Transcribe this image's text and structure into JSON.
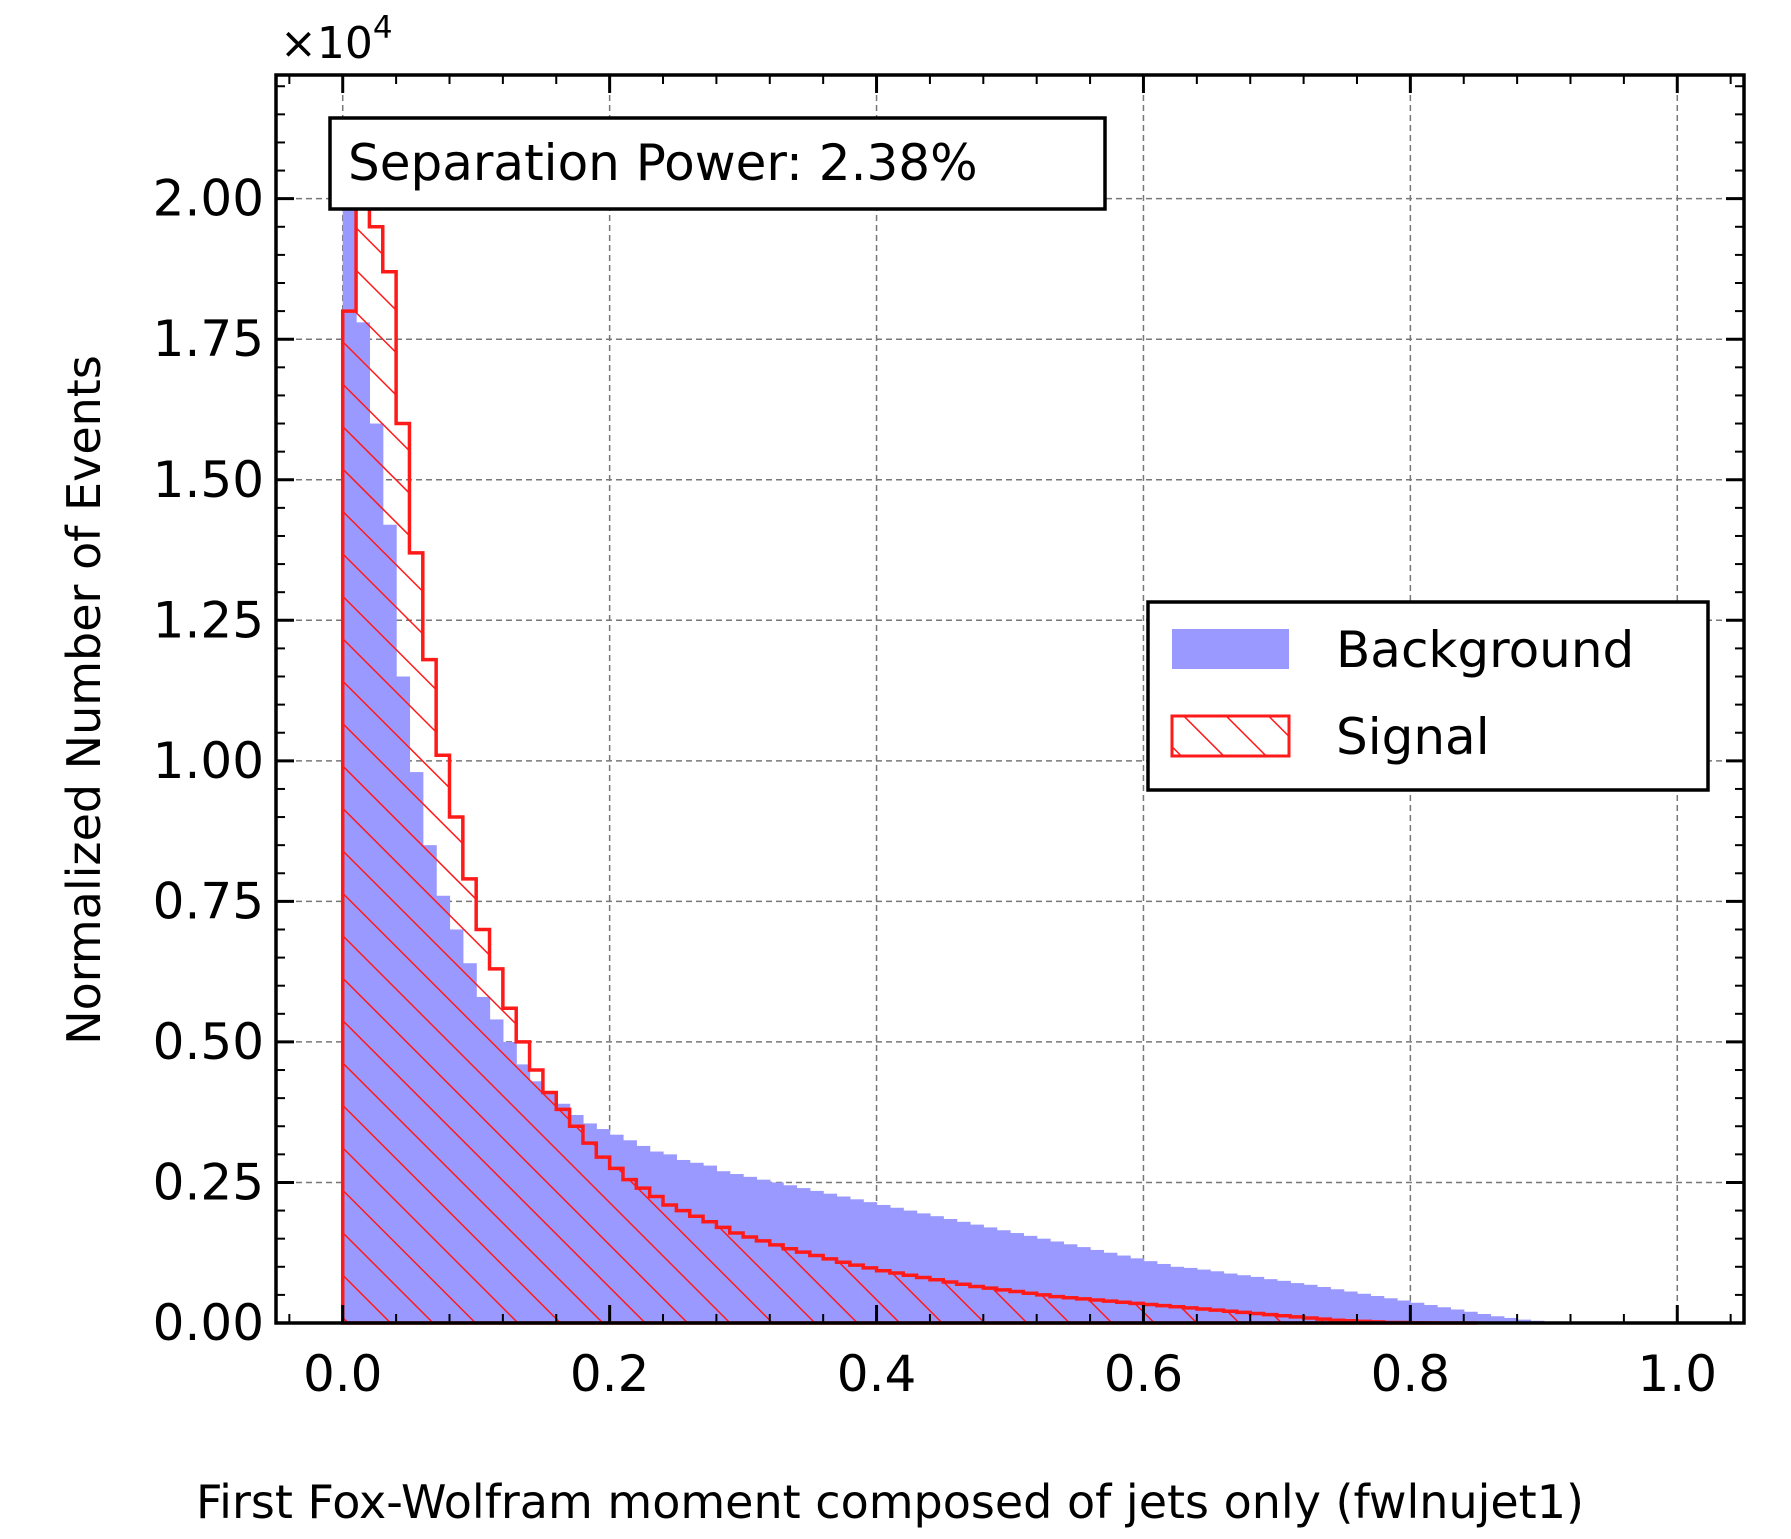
{
  "chart_data": {
    "type": "histogram",
    "xlabel": "First Fox-Wolfram moment composed of jets only (fwlnujet1)",
    "ylabel": "Normalized Number of Events",
    "y_multiplier": "×10",
    "y_multiplier_exp": "4",
    "annotation": "Separation Power: 2.38%",
    "xlim": [
      -0.05,
      1.05
    ],
    "ylim": [
      0,
      2.22
    ],
    "x_ticks": [
      0.0,
      0.2,
      0.4,
      0.6,
      0.8,
      1.0
    ],
    "x_tick_labels": [
      "0.0",
      "0.2",
      "0.4",
      "0.6",
      "0.8",
      "1.0"
    ],
    "y_ticks": [
      0.0,
      0.25,
      0.5,
      0.75,
      1.0,
      1.25,
      1.5,
      1.75,
      2.0
    ],
    "y_tick_labels": [
      "0.00",
      "0.25",
      "0.50",
      "0.75",
      "1.00",
      "1.25",
      "1.50",
      "1.75",
      "2.00"
    ],
    "grid": true,
    "legend_position": "center-right",
    "bin_start": 0.0,
    "bin_width": 0.01,
    "series": [
      {
        "name": "Background",
        "style": "filled",
        "color": "#9999ff",
        "values": [
          2.0,
          1.78,
          1.6,
          1.42,
          1.15,
          0.98,
          0.85,
          0.76,
          0.7,
          0.64,
          0.58,
          0.54,
          0.5,
          0.46,
          0.43,
          0.41,
          0.39,
          0.37,
          0.355,
          0.345,
          0.335,
          0.325,
          0.315,
          0.305,
          0.3,
          0.29,
          0.285,
          0.28,
          0.27,
          0.265,
          0.26,
          0.255,
          0.25,
          0.245,
          0.24,
          0.235,
          0.23,
          0.225,
          0.22,
          0.215,
          0.21,
          0.205,
          0.2,
          0.195,
          0.19,
          0.185,
          0.18,
          0.175,
          0.17,
          0.165,
          0.16,
          0.155,
          0.15,
          0.145,
          0.14,
          0.135,
          0.13,
          0.125,
          0.12,
          0.115,
          0.11,
          0.105,
          0.1,
          0.098,
          0.095,
          0.092,
          0.088,
          0.085,
          0.082,
          0.078,
          0.075,
          0.071,
          0.068,
          0.064,
          0.06,
          0.056,
          0.052,
          0.048,
          0.044,
          0.04,
          0.036,
          0.032,
          0.028,
          0.024,
          0.02,
          0.016,
          0.012,
          0.009,
          0.006,
          0.004,
          0.002,
          0.001
        ]
      },
      {
        "name": "Signal",
        "style": "hatched",
        "color": "#ff1a1a",
        "values": [
          1.8,
          2.0,
          1.95,
          1.87,
          1.6,
          1.37,
          1.18,
          1.01,
          0.9,
          0.79,
          0.7,
          0.63,
          0.56,
          0.5,
          0.45,
          0.41,
          0.38,
          0.35,
          0.32,
          0.295,
          0.275,
          0.255,
          0.24,
          0.225,
          0.21,
          0.2,
          0.19,
          0.18,
          0.17,
          0.16,
          0.153,
          0.146,
          0.139,
          0.132,
          0.126,
          0.12,
          0.114,
          0.108,
          0.103,
          0.098,
          0.093,
          0.089,
          0.085,
          0.081,
          0.077,
          0.073,
          0.069,
          0.065,
          0.062,
          0.059,
          0.056,
          0.053,
          0.05,
          0.047,
          0.045,
          0.043,
          0.041,
          0.039,
          0.037,
          0.035,
          0.033,
          0.031,
          0.029,
          0.027,
          0.025,
          0.023,
          0.021,
          0.019,
          0.017,
          0.015,
          0.013,
          0.011,
          0.009,
          0.007,
          0.005,
          0.004,
          0.003,
          0.002,
          0.001,
          0.001,
          0.0005,
          0.0003,
          0.0001,
          0.0,
          0.0
        ]
      }
    ]
  }
}
